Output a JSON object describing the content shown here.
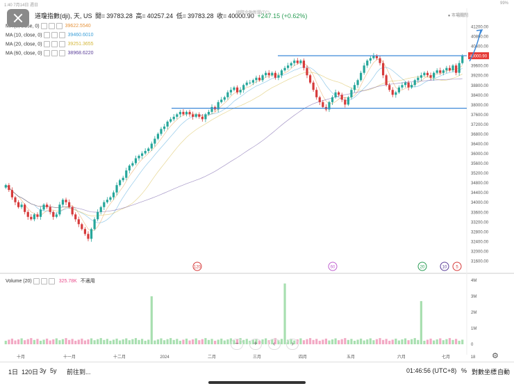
{
  "status_bar": {
    "left": "1:40  7月14日 週日",
    "right": "99%"
  },
  "header": {
    "name": "道瓊指數(dji), 天, US",
    "open_label": "開=",
    "open": "39783.28",
    "high_label": "高=",
    "high": "40257.24",
    "low_label": "低=",
    "low": "39783.28",
    "close_label": "收=",
    "close": "40000.90",
    "change": "+247.15 (+0.62%)",
    "overlay": "國際金融新聞(TC)",
    "market": "市場關閉"
  },
  "ma_rows": [
    {
      "label": "MA (5, close, 0)",
      "value": "39622.5540",
      "color": "#e69138"
    },
    {
      "label": "MA (10, close, 0)",
      "value": "39460.6010",
      "color": "#3c9fd8"
    },
    {
      "label": "MA (20, close, 0)",
      "value": "39251.3655",
      "color": "#d4b73a"
    },
    {
      "label": "MA (60, close, 0)",
      "value": "38968.6220",
      "color": "#5b3f99"
    }
  ],
  "volume": {
    "label": "Volume (20)",
    "value": "325.78K",
    "na": "不適用"
  },
  "price_ticks": [
    "41200.00",
    "40800.00",
    "40400.00",
    "40000.00",
    "39600.00",
    "39200.00",
    "38800.00",
    "38400.00",
    "38000.00",
    "37600.00",
    "37200.00",
    "36800.00",
    "36400.00",
    "36000.00",
    "35600.00",
    "35200.00",
    "34800.00",
    "34400.00",
    "34000.00",
    "33600.00",
    "33200.00",
    "32800.00",
    "32400.00",
    "32000.00",
    "31600.00"
  ],
  "price_tag": "40000.90",
  "volume_ticks": [
    "4M",
    "3M",
    "2M",
    "1M",
    "0"
  ],
  "x_labels": [
    "十月",
    "十一月",
    "十二月",
    "2024",
    "二月",
    "三月",
    "四月",
    "五月",
    "六月",
    "七月",
    "18"
  ],
  "markers": [
    "120",
    "60",
    "20",
    "10",
    "5"
  ],
  "levels": {
    "resistance": 40000,
    "support": 37850
  },
  "chart_nav": {
    "left": "‹",
    "right": "›",
    "minus": "−",
    "plus": "+"
  },
  "toolbar": {
    "ranges": [
      "1日",
      "120日",
      "3y",
      "5y"
    ],
    "goto": "前往到...",
    "time": "01:46:56 (UTC+8)",
    "pct": "%",
    "log": "對數坐標",
    "auto": "自動"
  },
  "chart_data": {
    "type": "candlestick",
    "title": "道瓊指數(dji), 天, US",
    "y_range": [
      31400,
      41400
    ],
    "closes": [
      34700,
      34500,
      34200,
      34000,
      33800,
      33900,
      33600,
      33400,
      33300,
      33500,
      33400,
      33700,
      33900,
      33800,
      33600,
      33400,
      33500,
      33900,
      34100,
      34000,
      33800,
      33500,
      33300,
      33100,
      32900,
      32700,
      32500,
      32900,
      33300,
      33600,
      33800,
      34000,
      34100,
      34200,
      34400,
      34700,
      34900,
      35000,
      35300,
      35500,
      35600,
      35800,
      35900,
      36000,
      36100,
      36200,
      36400,
      36600,
      36800,
      37000,
      37100,
      37300,
      37400,
      37500,
      37600,
      37700,
      37600,
      37700,
      37600,
      37500,
      37600,
      37500,
      37400,
      37600,
      37700,
      37900,
      37800,
      38100,
      38200,
      38300,
      38500,
      38600,
      38700,
      38500,
      38600,
      38800,
      38900,
      38900,
      39000,
      39100,
      39000,
      39200,
      39300,
      39200,
      39300,
      39100,
      39200,
      39400,
      39500,
      39600,
      39700,
      39800,
      39700,
      39800,
      39500,
      39200,
      38900,
      38600,
      38300,
      38100,
      37900,
      37800,
      38100,
      38300,
      38500,
      38400,
      38200,
      38000,
      38300,
      38600,
      38800,
      39000,
      39300,
      39600,
      39800,
      39900,
      40000,
      39900,
      39700,
      39200,
      38800,
      38600,
      38400,
      38500,
      38700,
      38800,
      38900,
      38700,
      38800,
      39000,
      39100,
      39200,
      39300,
      39200,
      39100,
      39300,
      39400,
      39300,
      39400,
      39500,
      39400,
      39600,
      39300,
      39700,
      40000
    ]
  }
}
